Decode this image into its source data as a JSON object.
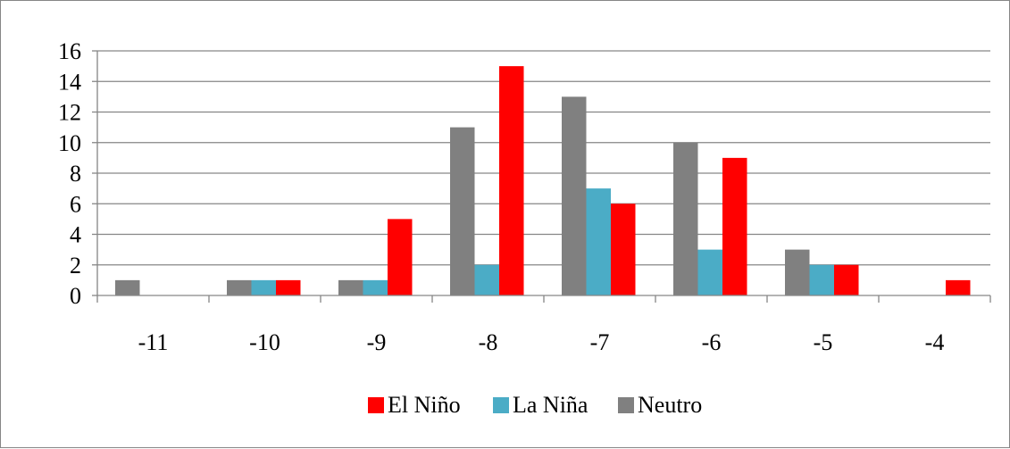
{
  "chart_data": {
    "type": "bar",
    "categories": [
      "-11",
      "-10",
      "-9",
      "-8",
      "-7",
      "-6",
      "-5",
      "-4"
    ],
    "series": [
      {
        "name": "Neutro",
        "color": "#808080",
        "values": [
          1,
          1,
          1,
          11,
          13,
          10,
          3,
          0
        ]
      },
      {
        "name": "La Niña",
        "color": "#4bacc6",
        "values": [
          0,
          1,
          1,
          2,
          7,
          3,
          2,
          0
        ]
      },
      {
        "name": "El Niño",
        "color": "#ff0000",
        "values": [
          0,
          1,
          5,
          15,
          6,
          9,
          2,
          1
        ]
      }
    ],
    "legend_order": [
      "El Niño",
      "La Niña",
      "Neutro"
    ],
    "yticks": [
      "0",
      "2",
      "4",
      "6",
      "8",
      "10",
      "12",
      "14",
      "16"
    ],
    "ylim": [
      0,
      16
    ],
    "grid": true,
    "legend_position": "bottom",
    "title": "",
    "xlabel": "",
    "ylabel": ""
  }
}
